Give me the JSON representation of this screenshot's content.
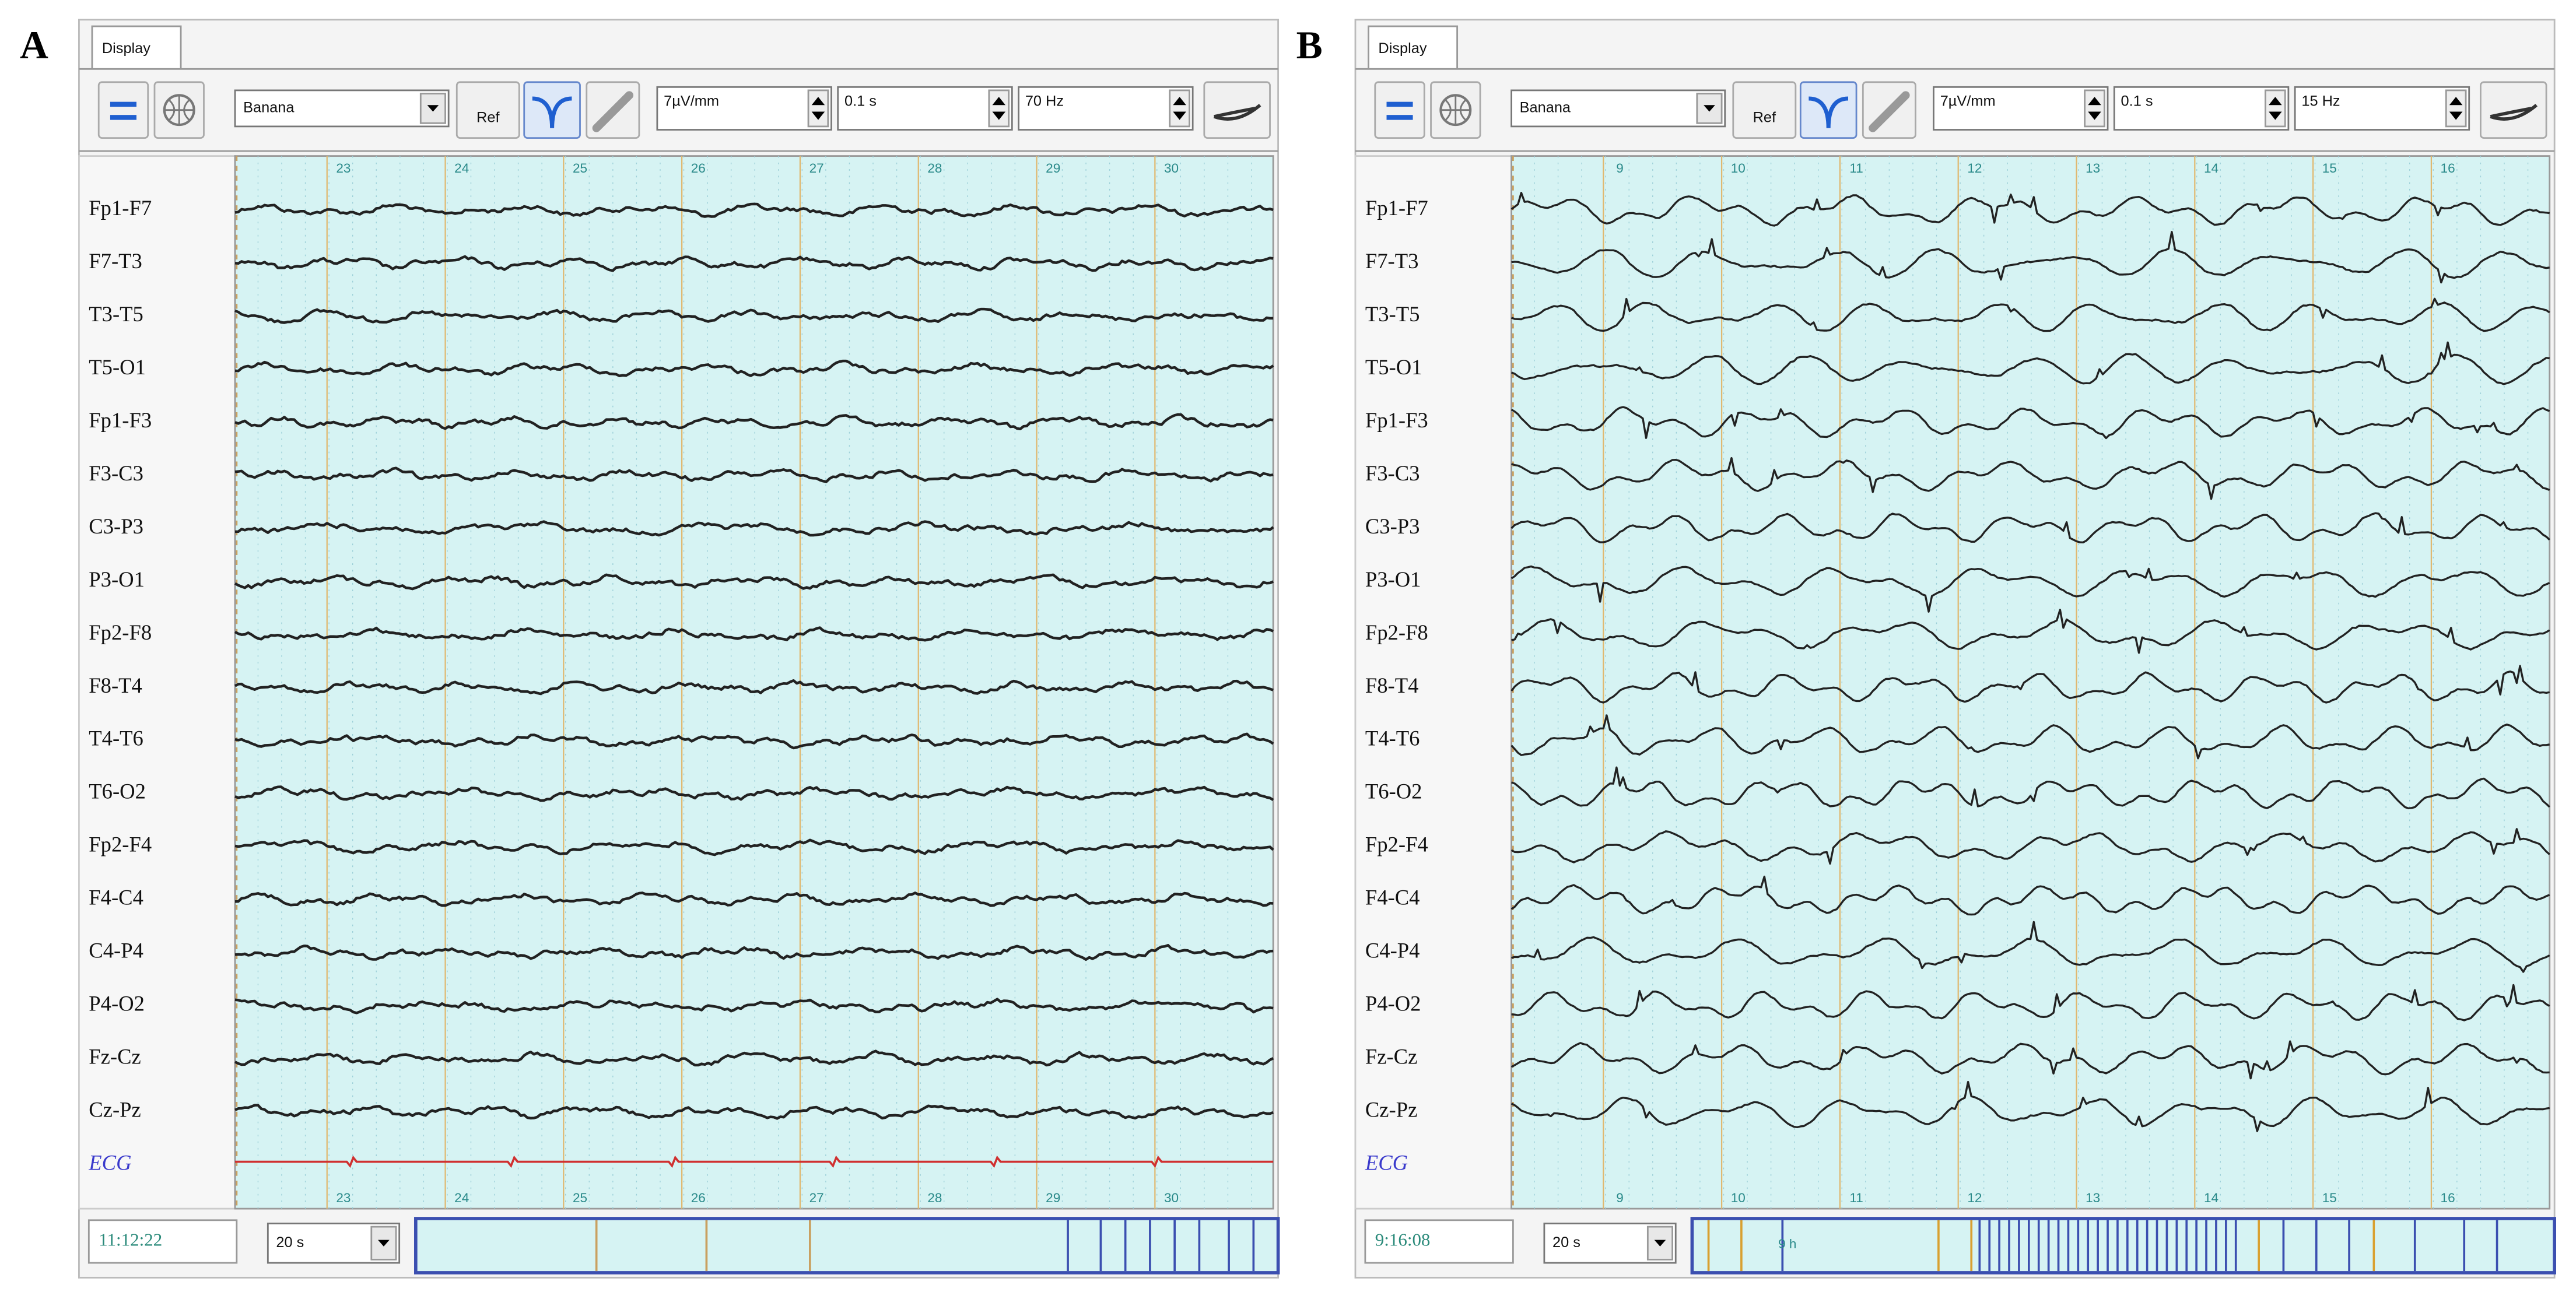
{
  "panels": [
    {
      "letter": "A",
      "tab": "Display",
      "montage": "Banana",
      "ref": "Ref",
      "sensitivity": "7µV/mm",
      "timebase": "0.1 s",
      "filter": "70 Hz",
      "time_marks": [
        23,
        24,
        25,
        26,
        27,
        28,
        29,
        30
      ],
      "channels": [
        "Fp1-F7",
        "F7-T3",
        "T3-T5",
        "T5-O1",
        "Fp1-F3",
        "F3-C3",
        "C3-P3",
        "P3-O1",
        "Fp2-F8",
        "F8-T4",
        "T4-T6",
        "T6-O2",
        "Fp2-F4",
        "F4-C4",
        "C4-P4",
        "P4-O2",
        "Fz-Cz",
        "Cz-Pz",
        "ECG"
      ],
      "clock": "11:12:22",
      "page_length": "20 s"
    },
    {
      "letter": "B",
      "tab": "Display",
      "montage": "Banana",
      "ref": "Ref",
      "sensitivity": "7µV/mm",
      "timebase": "0.1 s",
      "filter": "15 Hz",
      "time_marks": [
        9,
        10,
        11,
        12,
        13,
        14,
        15,
        16
      ],
      "channels": [
        "Fp1-F7",
        "F7-T3",
        "T3-T5",
        "T5-O1",
        "Fp1-F3",
        "F3-C3",
        "C3-P3",
        "P3-O1",
        "Fp2-F8",
        "F8-T4",
        "T4-T6",
        "T6-O2",
        "Fp2-F4",
        "F4-C4",
        "C4-P4",
        "P4-O2",
        "Fz-Cz",
        "Cz-Pz",
        "ECG"
      ],
      "clock": "9:16:08",
      "page_length": "20 s",
      "bar_label": "9 h"
    }
  ]
}
